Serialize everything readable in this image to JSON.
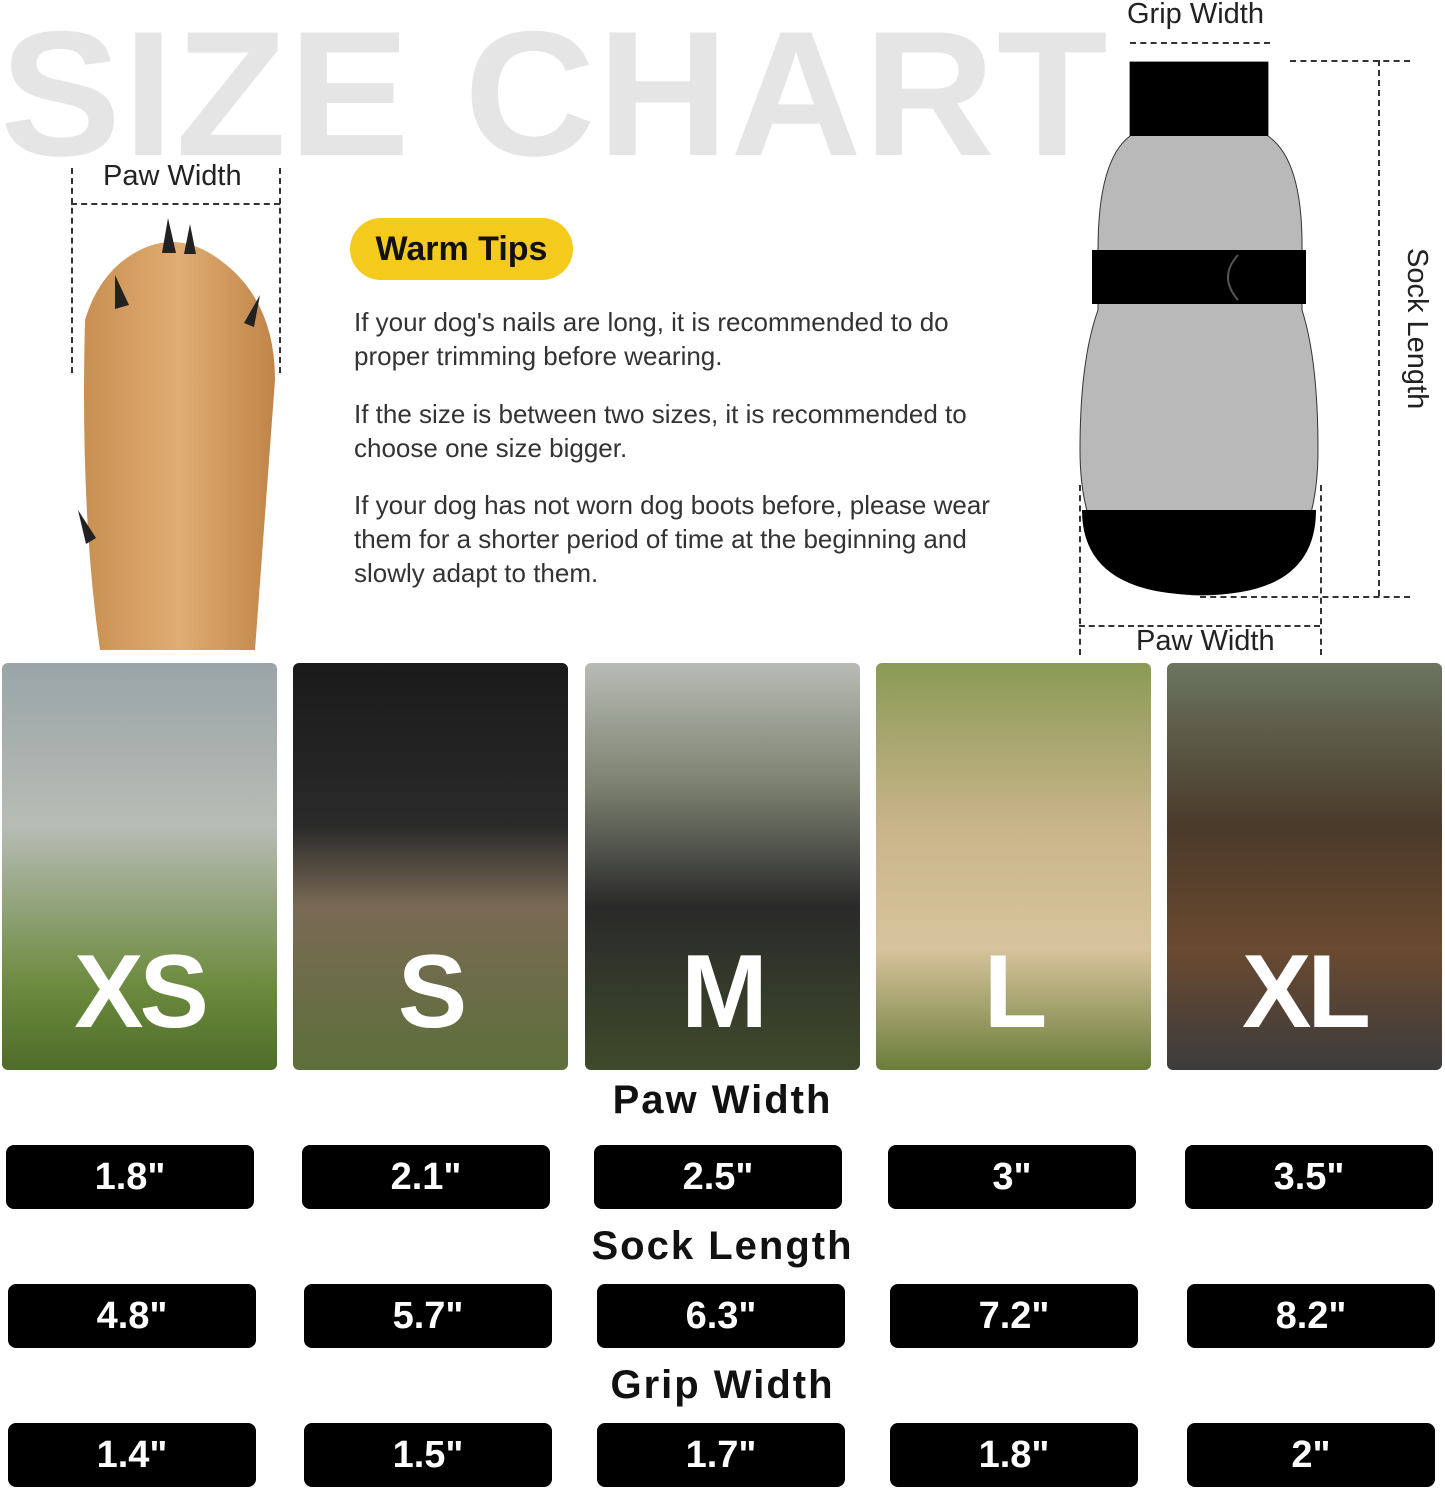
{
  "title": "SIZE CHART",
  "paw_label": "Paw Width",
  "sock_labels": {
    "grip": "Grip Width",
    "length": "Sock Length",
    "paw": "Paw Width"
  },
  "warm_tips": {
    "badge": "Warm Tips",
    "tips": [
      "If your dog's nails are long, it is recommended to do proper trimming before wearing.",
      "If the size is between two sizes, it is recommended to choose one size bigger.",
      "If your dog has not worn dog boots before, please wear them for a shorter period of time at the beginning and slowly adapt to them."
    ]
  },
  "sizes": [
    "XS",
    "S",
    "M",
    "L",
    "XL"
  ],
  "measurements": [
    {
      "title": "Paw Width",
      "values": [
        "1.8\"",
        "2.1\"",
        "2.5\"",
        "3\"",
        "3.5\""
      ]
    },
    {
      "title": "Sock Length",
      "values": [
        "4.8\"",
        "5.7\"",
        "6.3\"",
        "7.2\"",
        "8.2\""
      ]
    },
    {
      "title": "Grip Width",
      "values": [
        "1.4\"",
        "1.5\"",
        "1.7\"",
        "1.8\"",
        "2\""
      ]
    }
  ],
  "colors": {
    "badge": "#f4cb1c",
    "pill": "#000000",
    "title": "#e5e5e5"
  }
}
